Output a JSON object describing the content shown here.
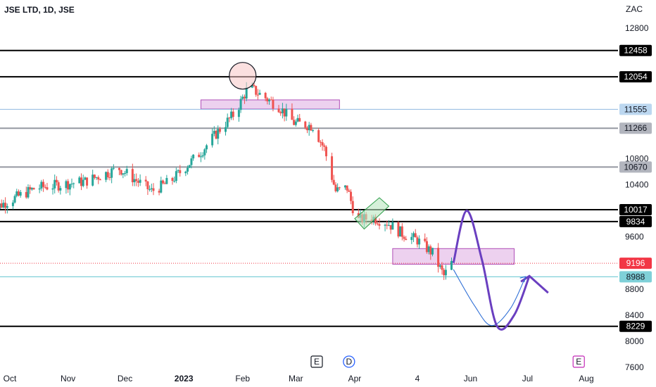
{
  "symbol_title": "JSE LTD, 1D, JSE",
  "currency": "ZAC",
  "colors": {
    "up": "#26a69a",
    "down": "#ef5350",
    "level": "#000000",
    "path_primary": "#6a3fc0",
    "path_secondary": "#2f6fd6",
    "zone_fill": "#e7c2ea",
    "zone_stroke": "#b04fb8",
    "current_price": "#f23645",
    "light_level": "#8fb8e0",
    "teal_level": "#7fd0d8"
  },
  "chart_data": {
    "type": "candlestick",
    "y_range": [
      7600,
      13050
    ],
    "x_ticks": [
      {
        "label": "Oct",
        "date": "2022-10-01"
      },
      {
        "label": "Nov",
        "date": "2022-11-01"
      },
      {
        "label": "Dec",
        "date": "2022-12-01"
      },
      {
        "label": "2023",
        "date": "2023-01-01",
        "bold": true
      },
      {
        "label": "Feb",
        "date": "2023-02-01"
      },
      {
        "label": "Mar",
        "date": "2023-03-01"
      },
      {
        "label": "Apr",
        "date": "2023-04-01"
      },
      {
        "label": "4",
        "date": "2023-05-04"
      },
      {
        "label": "Jun",
        "date": "2023-06-01"
      },
      {
        "label": "Jul",
        "date": "2023-07-01"
      },
      {
        "label": "Aug",
        "date": "2023-08-01"
      }
    ],
    "y_ticks": [
      12800,
      12400,
      12000,
      11600,
      11200,
      10800,
      10400,
      10000,
      9600,
      9200,
      8800,
      8400,
      8000,
      7600
    ],
    "y_ticks_visible": [
      "12800",
      "10800",
      "10400",
      "9600",
      "8800",
      "8400",
      "8000",
      "7600"
    ],
    "levels": [
      {
        "price": 12458,
        "label": "12458",
        "style": "black-thick",
        "tag_bg": "#000000",
        "tag_fg": "#ffffff"
      },
      {
        "price": 12054,
        "label": "12054",
        "style": "black-thick",
        "tag_bg": "#000000",
        "tag_fg": "#ffffff"
      },
      {
        "price": 11555,
        "label": "11555",
        "style": "light-blue",
        "tag_bg": "#bcd7f0",
        "tag_fg": "#131722"
      },
      {
        "price": 11266,
        "label": "11266",
        "style": "gray",
        "tag_bg": "#b2b5be",
        "tag_fg": "#131722"
      },
      {
        "price": 10670,
        "label": "10670",
        "style": "gray",
        "tag_bg": "#b2b5be",
        "tag_fg": "#131722"
      },
      {
        "price": 10017,
        "label": "10017",
        "style": "black-thick",
        "tag_bg": "#000000",
        "tag_fg": "#ffffff"
      },
      {
        "price": 9834,
        "label": "9834",
        "style": "black-thick",
        "tag_bg": "#000000",
        "tag_fg": "#ffffff"
      },
      {
        "price": 9196,
        "label": "9196",
        "style": "red-dotted",
        "tag_bg": "#f23645",
        "tag_fg": "#ffffff"
      },
      {
        "price": 8988,
        "label": "8988",
        "style": "teal",
        "tag_bg": "#7fd0d8",
        "tag_fg": "#131722"
      },
      {
        "price": 8229,
        "label": "8229",
        "style": "black-thick",
        "tag_bg": "#000000",
        "tag_fg": "#ffffff"
      }
    ],
    "zones": [
      {
        "name": "supply-zone",
        "from": "2023-01-10",
        "to": "2023-03-24",
        "top": 11700,
        "bottom": 11560
      },
      {
        "name": "demand-zone",
        "from": "2023-04-21",
        "to": "2023-06-24",
        "top": 9420,
        "bottom": 9180
      }
    ],
    "anchor_points": [
      [
        "2022-09-20",
        10000
      ],
      [
        "2022-10-15",
        10350
      ],
      [
        "2022-11-10",
        10450
      ],
      [
        "2022-11-28",
        10650
      ],
      [
        "2022-12-15",
        10300
      ],
      [
        "2022-12-25",
        10450
      ],
      [
        "2023-01-10",
        10900
      ],
      [
        "2023-01-20",
        11250
      ],
      [
        "2023-01-28",
        11500
      ],
      [
        "2023-02-04",
        11900
      ],
      [
        "2023-02-12",
        11750
      ],
      [
        "2023-02-20",
        11600
      ],
      [
        "2023-02-28",
        11350
      ],
      [
        "2023-03-10",
        11300
      ],
      [
        "2023-03-16",
        10950
      ],
      [
        "2023-03-22",
        10300
      ],
      [
        "2023-03-28",
        10350
      ],
      [
        "2023-04-02",
        9850
      ],
      [
        "2023-04-10",
        9900
      ],
      [
        "2023-04-18",
        9820
      ],
      [
        "2023-04-26",
        9650
      ],
      [
        "2023-05-04",
        9550
      ],
      [
        "2023-05-12",
        9350
      ],
      [
        "2023-05-18",
        9000
      ],
      [
        "2023-05-22",
        9196
      ]
    ],
    "events": [
      {
        "label": "E",
        "date": "2023-03-12",
        "color": "#131722"
      },
      {
        "label": "D",
        "date": "2023-03-29",
        "color": "#2962ff"
      },
      {
        "label": "E",
        "date": "2023-07-28",
        "color": "#c229b7"
      }
    ],
    "circle_marker": {
      "date": "2023-02-01",
      "price": 12070
    },
    "flag_pattern": [
      [
        "2023-04-01",
        9880
      ],
      [
        "2023-04-14",
        10200
      ],
      [
        "2023-04-19",
        10070
      ],
      [
        "2023-04-06",
        9720
      ]
    ],
    "projection_primary": [
      [
        "2023-05-23",
        9200
      ],
      [
        "2023-05-30",
        10000
      ],
      [
        "2023-06-07",
        9250
      ],
      [
        "2023-06-15",
        8230
      ],
      [
        "2023-06-24",
        8400
      ],
      [
        "2023-07-02",
        9000
      ]
    ],
    "projection_primary_arrow": {
      "date": "2023-07-03",
      "price": 8980
    },
    "projection_secondary": [
      [
        "2023-05-23",
        9100
      ],
      [
        "2023-06-03",
        8550
      ],
      [
        "2023-06-12",
        8240
      ],
      [
        "2023-06-22",
        8500
      ],
      [
        "2023-06-30",
        8990
      ]
    ]
  }
}
